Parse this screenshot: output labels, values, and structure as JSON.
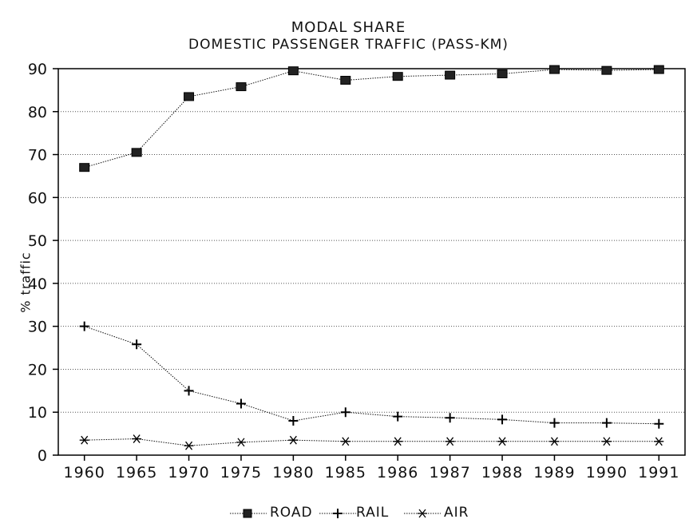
{
  "chart_data": {
    "type": "line",
    "title": "MODAL SHARE",
    "subtitle": "DOMESTIC PASSENGER TRAFFIC (PASS-KM)",
    "ylabel": "% traffic",
    "xlabel": "",
    "categories": [
      "1960",
      "1965",
      "1970",
      "1975",
      "1980",
      "1985",
      "1986",
      "1987",
      "1988",
      "1989",
      "1990",
      "1991"
    ],
    "yticks": [
      "0",
      "10",
      "20",
      "30",
      "40",
      "50",
      "60",
      "70",
      "80",
      "90"
    ],
    "ylim": [
      0,
      90
    ],
    "grid": "horizontal dotted",
    "legend_position": "bottom",
    "series": [
      {
        "name": "ROAD",
        "marker": "filled-square",
        "values": [
          67,
          70.5,
          83.5,
          85.8,
          89.5,
          87.3,
          88.2,
          88.5,
          88.8,
          89.8,
          89.6,
          89.8
        ]
      },
      {
        "name": "RAIL",
        "marker": "plus",
        "values": [
          30,
          25.8,
          15,
          12,
          8,
          10,
          9,
          8.7,
          8.3,
          7.5,
          7.5,
          7.3
        ]
      },
      {
        "name": "AIR",
        "marker": "asterisk",
        "values": [
          3.5,
          3.8,
          2.2,
          3,
          3.5,
          3.2,
          3.2,
          3.2,
          3.2,
          3.2,
          3.2,
          3.2
        ]
      }
    ]
  }
}
